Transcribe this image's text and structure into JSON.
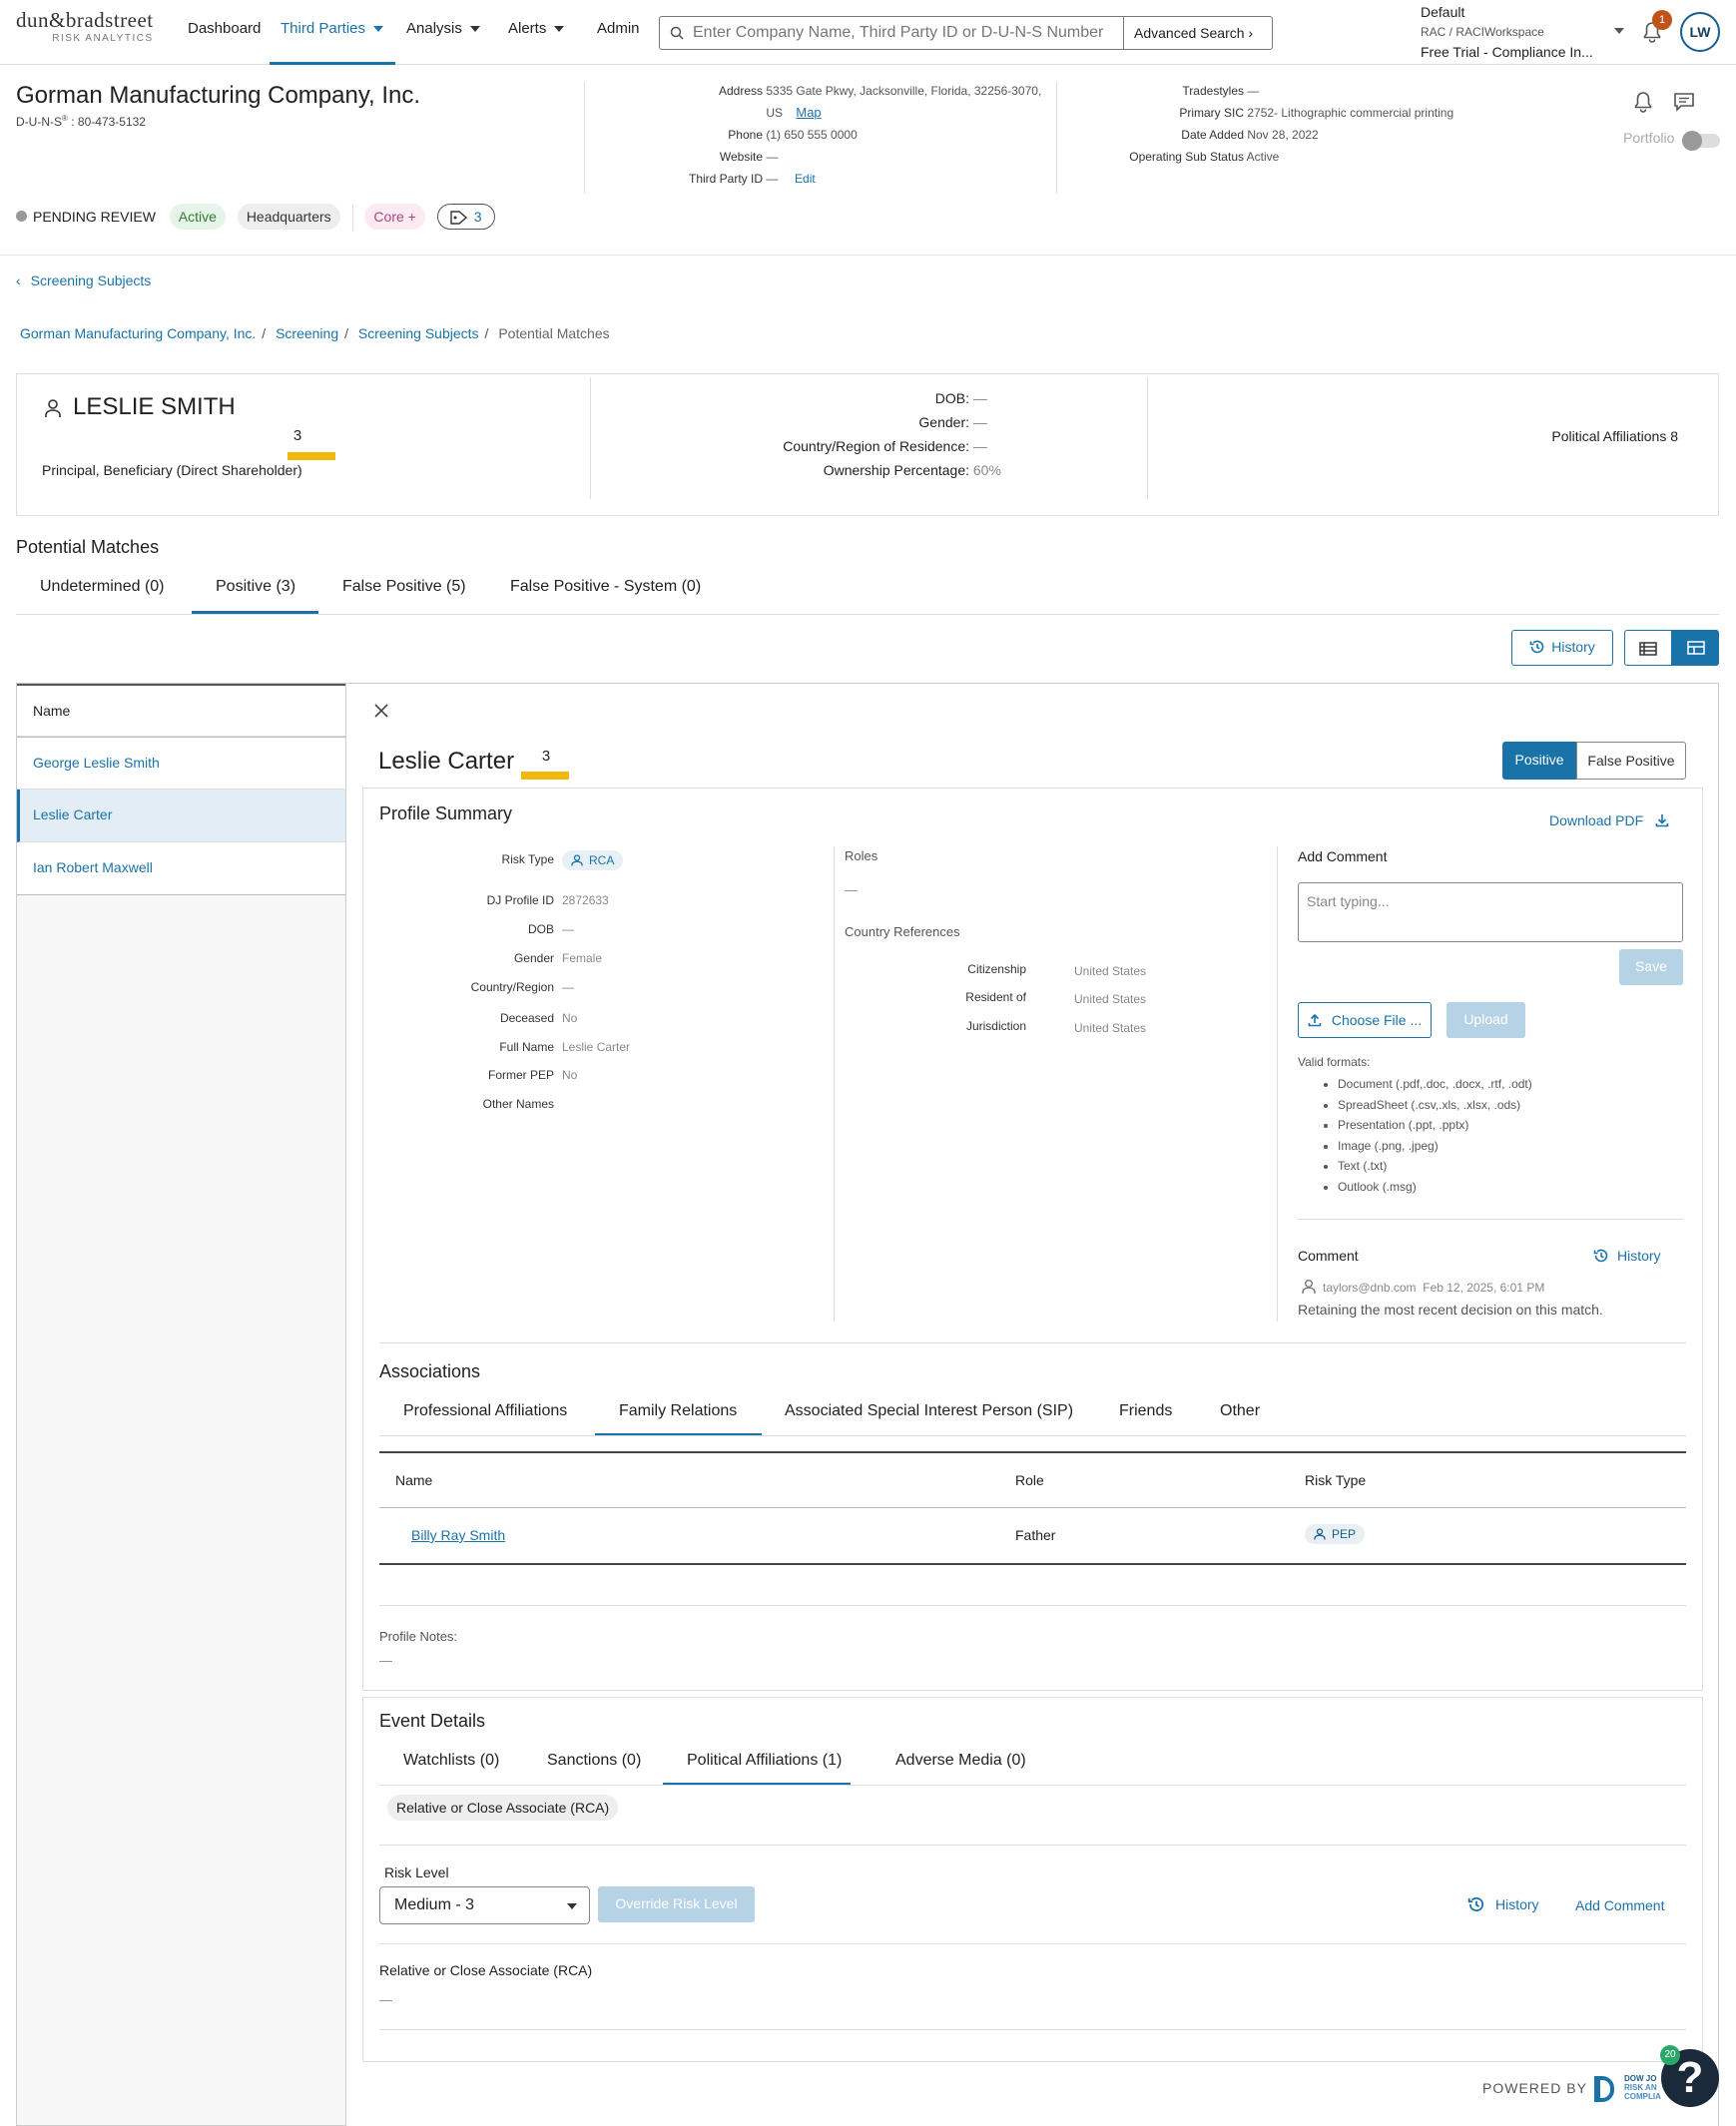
{
  "nav": {
    "logo_main": "dun&bradstreet",
    "logo_sub": "RISK ANALYTICS",
    "items": [
      "Dashboard",
      "Third Parties",
      "Analysis",
      "Alerts",
      "Admin"
    ],
    "search_placeholder": "Enter Company Name, Third Party ID or D-U-N-S Number",
    "advanced_search": "Advanced Search",
    "workspace_line1": "Default",
    "workspace_line2": "RAC / RACIWorkspace",
    "workspace_line3": "Free Trial - Compliance In...",
    "notification_count": "1",
    "user_initials": "LW"
  },
  "company": {
    "name": "Gorman Manufacturing Company, Inc.",
    "duns_label": "D-U-N-S",
    "duns_reg": "®",
    "duns_value": " : 80-473-5132",
    "address_label": "Address",
    "address_line1": "5335 Gate Pkwy, Jacksonville, Florida, 32256-3070,",
    "address_line2": "US",
    "map": "Map",
    "phone_label": "Phone",
    "phone": "(1) 650 555 0000",
    "website_label": "Website",
    "website": "—",
    "tpid_label": "Third Party ID",
    "tpid": "—",
    "edit": "Edit",
    "tradestyles_label": "Tradestyles",
    "tradestyles": "—",
    "sic_label": "Primary SIC",
    "sic": "2752- Lithographic commercial printing",
    "date_added_label": "Date Added",
    "date_added": "Nov 28, 2022",
    "op_status_label": "Operating Sub Status",
    "op_status": "Active",
    "portfolio": "Portfolio",
    "status": "PENDING REVIEW",
    "tags": [
      "Active",
      "Headquarters",
      "Core +"
    ],
    "tag_count": "3"
  },
  "back_link": "Screening Subjects",
  "breadcrumb": [
    "Gorman Manufacturing Company, Inc.",
    "Screening",
    "Screening Subjects",
    "Potential Matches"
  ],
  "subject": {
    "name": "LESLIE SMITH",
    "score": "3",
    "role": "Principal, Beneficiary (Direct Shareholder)",
    "dob_label": "DOB:",
    "dob": "—",
    "gender_label": "Gender:",
    "gender": "—",
    "country_label": "Country/Region of Residence:",
    "country": "—",
    "ownership_label": "Ownership Percentage:",
    "ownership": "60%",
    "political": "Political Affiliations 8"
  },
  "potential_matches": {
    "title": "Potential Matches",
    "tabs": [
      "Undetermined (0)",
      "Positive (3)",
      "False Positive (5)",
      "False Positive - System (0)"
    ],
    "active_tab": 1,
    "history": "History"
  },
  "list": {
    "header": "Name",
    "rows": [
      "George Leslie Smith",
      "Leslie Carter",
      "Ian Robert Maxwell"
    ],
    "selected": 1
  },
  "detail": {
    "name": "Leslie Carter",
    "score": "3",
    "positive": "Positive",
    "false_positive": "False Positive",
    "profile_summary": "Profile Summary",
    "download_pdf": "Download PDF",
    "fields": [
      {
        "k": "Risk Type",
        "v": "RCA"
      },
      {
        "k": "DJ Profile ID",
        "v": "2872633"
      },
      {
        "k": "DOB",
        "v": "—"
      },
      {
        "k": "Gender",
        "v": "Female"
      },
      {
        "k": "Country/Region",
        "v": "—"
      },
      {
        "k": "Deceased",
        "v": "No"
      },
      {
        "k": "Full Name",
        "v": "Leslie Carter"
      },
      {
        "k": "Former PEP",
        "v": "No"
      },
      {
        "k": "Other Names",
        "v": ""
      }
    ],
    "roles_label": "Roles",
    "roles": "—",
    "country_refs_label": "Country References",
    "country_refs": [
      {
        "k": "Citizenship",
        "v": "United States"
      },
      {
        "k": "Resident of",
        "v": "United States"
      },
      {
        "k": "Jurisdiction",
        "v": "United States"
      }
    ],
    "add_comment": "Add Comment",
    "comment_placeholder": "Start typing...",
    "save": "Save",
    "choose_file": "Choose File ...",
    "upload": "Upload",
    "valid_formats": "Valid formats:",
    "formats": [
      "Document (.pdf,.doc, .docx, .rtf, .odt)",
      "SpreadSheet (.csv,.xls, .xlsx, .ods)",
      "Presentation (.ppt, .pptx)",
      "Image (.png, .jpeg)",
      "Text (.txt)",
      "Outlook (.msg)"
    ],
    "comment_label": "Comment",
    "comment_history": "History",
    "comment_user": "taylors@dnb.com",
    "comment_date": "Feb 12, 2025, 6:01 PM",
    "comment_text": "Retaining the most recent decision on this match."
  },
  "associations": {
    "title": "Associations",
    "tabs": [
      "Professional Affiliations",
      "Family Relations",
      "Associated Special Interest Person (SIP)",
      "Friends",
      "Other"
    ],
    "active_tab": 1,
    "columns": [
      "Name",
      "Role",
      "Risk Type"
    ],
    "rows": [
      {
        "name": "Billy Ray Smith",
        "role": "Father",
        "risk": "PEP"
      }
    ],
    "notes_label": "Profile Notes:",
    "notes": "—"
  },
  "events": {
    "title": "Event Details",
    "tabs": [
      "Watchlists (0)",
      "Sanctions (0)",
      "Political Affiliations (1)",
      "Adverse Media (0)"
    ],
    "active_tab": 2,
    "chip": "Relative or Close Associate (RCA)",
    "risk_level_label": "Risk Level",
    "risk_level": "Medium - 3",
    "override": "Override Risk Level",
    "history": "History",
    "add_comment": "Add Comment",
    "section_label": "Relative or Close Associate (RCA)",
    "section_value": "—"
  },
  "footer": {
    "powered_by": "POWERED BY",
    "brand_line1": "DOW JO",
    "brand_line2": "RISK AN",
    "brand_line3": "COMPLIA",
    "help_count": "20"
  },
  "colors": {
    "accent": "#1a73a8",
    "score_bar": "#f0b90b",
    "active_pill": "#e6f4ea",
    "core_pill": "#fbeaf2"
  }
}
